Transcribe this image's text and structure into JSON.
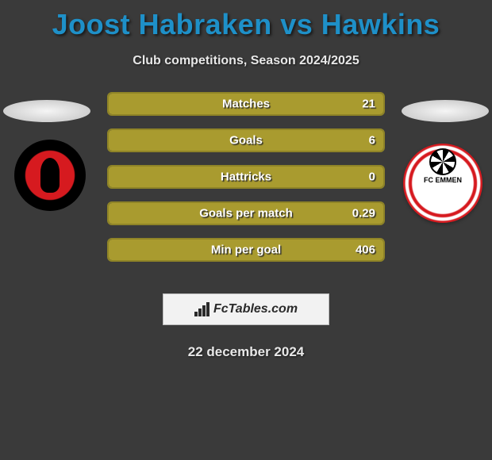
{
  "title": "Joost Habraken vs Hawkins",
  "title_color": "#1e90c8",
  "subtitle": "Club competitions, Season 2024/2025",
  "background_color": "#3a3a3a",
  "bar_color": "#a99b2f",
  "bar_border_color": "#8f8427",
  "stats": [
    {
      "label": "Matches",
      "value": "21",
      "fill_pct": 100
    },
    {
      "label": "Goals",
      "value": "6",
      "fill_pct": 100
    },
    {
      "label": "Hattricks",
      "value": "0",
      "fill_pct": 100
    },
    {
      "label": "Goals per match",
      "value": "0.29",
      "fill_pct": 100
    },
    {
      "label": "Min per goal",
      "value": "406",
      "fill_pct": 100
    }
  ],
  "brand": "FcTables.com",
  "date": "22 december 2024",
  "left_club": "Helmond Sport",
  "right_club": "FC Emmen"
}
